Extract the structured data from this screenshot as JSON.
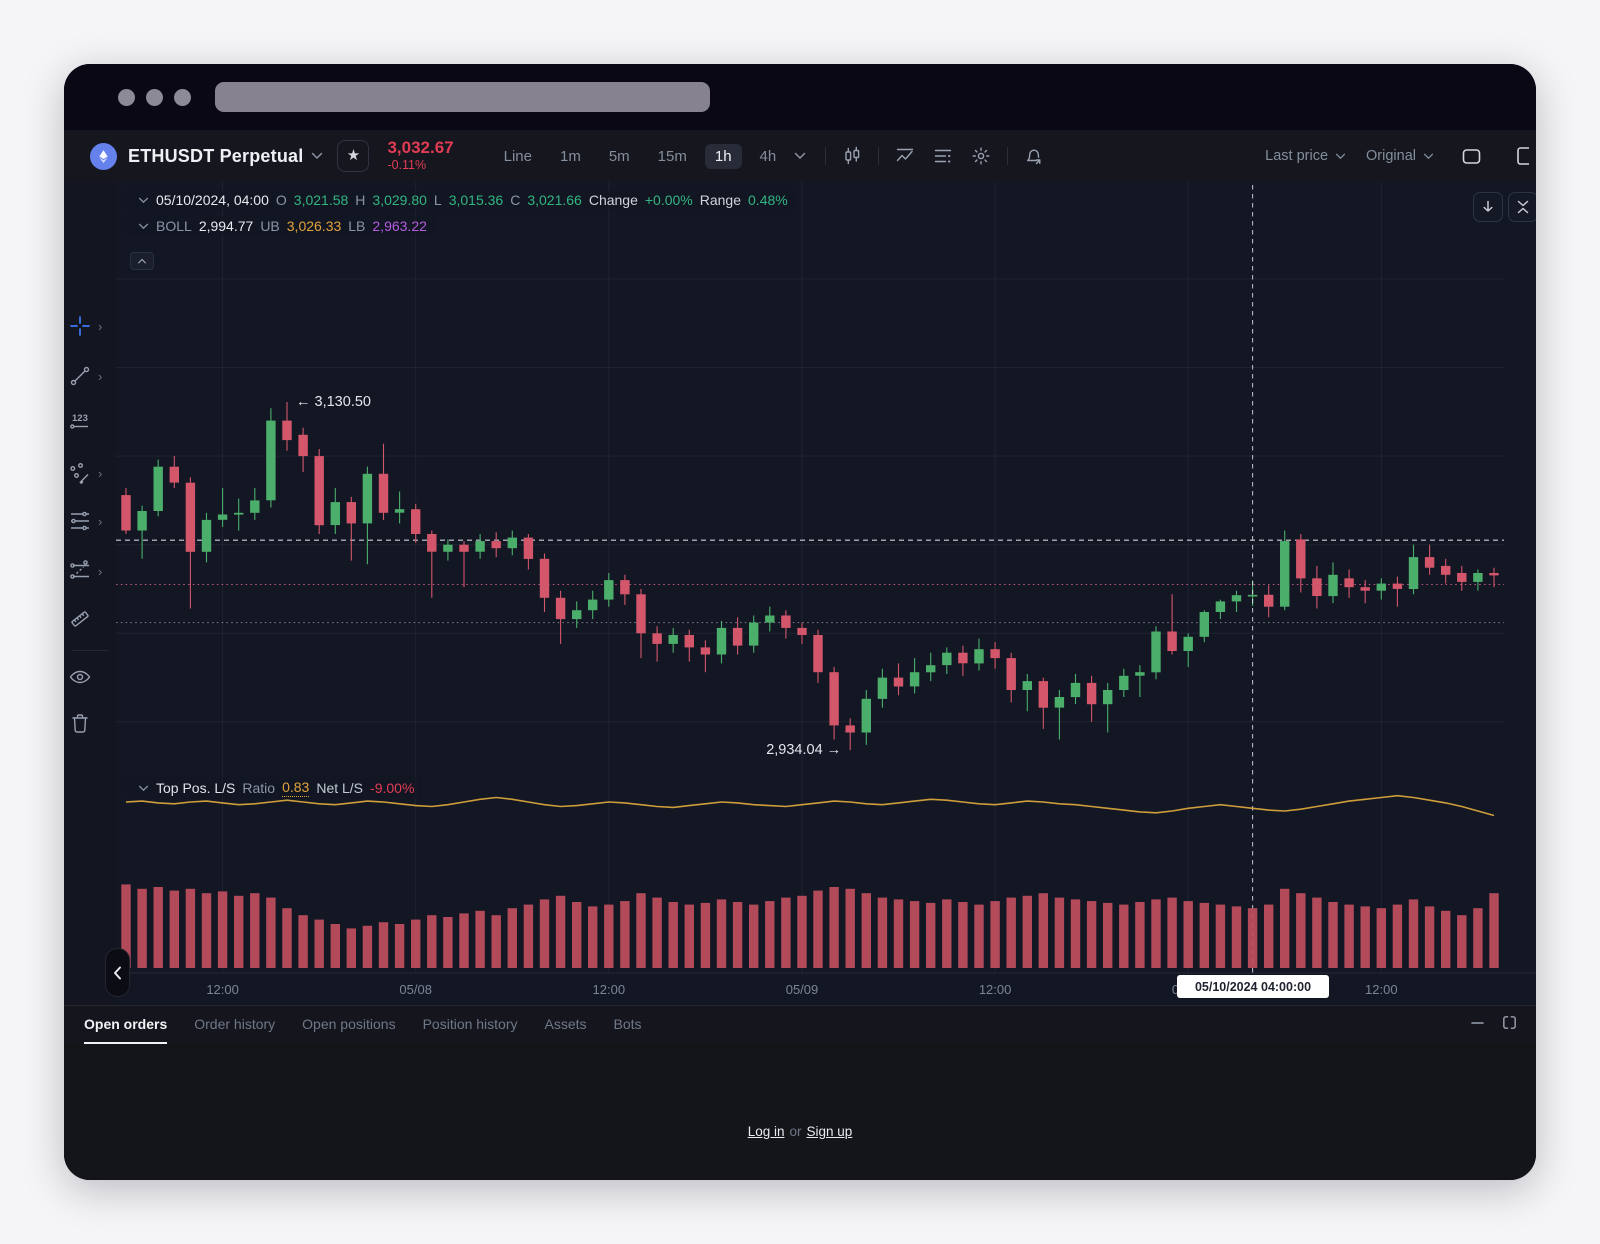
{
  "topbar": {
    "symbol": "ETHUSDT Perpetual",
    "price": "3,032.67",
    "change_pct": "-0.11%",
    "timeframes": [
      "Line",
      "1m",
      "5m",
      "15m",
      "1h",
      "4h"
    ],
    "active_timeframe": "1h",
    "price_mode": "Last price",
    "scale_mode": "Original"
  },
  "indicator_rows": {
    "ohlc": {
      "date": "05/10/2024, 04:00",
      "items": [
        {
          "label": "O",
          "value": "3,021.58"
        },
        {
          "label": "H",
          "value": "3,029.80"
        },
        {
          "label": "L",
          "value": "3,015.36"
        },
        {
          "label": "C",
          "value": "3,021.66"
        },
        {
          "label": "Change",
          "value": "+0.00%"
        },
        {
          "label": "Range",
          "value": "0.48%"
        }
      ]
    },
    "boll": {
      "name": "BOLL",
      "value": "2,994.77",
      "items": [
        {
          "label": "UB",
          "value": "3,026.33",
          "color": "#e2a33d"
        },
        {
          "label": "LB",
          "value": "2,963.22",
          "color": "#b45be0"
        }
      ]
    },
    "ls": {
      "name": "Top Pos. L/S",
      "ratio_label": "Ratio",
      "ratio": "0.83",
      "net_label": "Net L/S",
      "net": "-9.00%"
    }
  },
  "axis_tooltip": "05/10/2024  04:00:00",
  "bottom_tabs": [
    "Open orders",
    "Order history",
    "Open positions",
    "Position history",
    "Assets",
    "Bots"
  ],
  "active_tab": "Open orders",
  "footer": {
    "login": "Log in",
    "or": "or",
    "signup": "Sign up"
  },
  "toolbar_tools": [
    "crosshair",
    "trend-line",
    "price-label",
    "pattern",
    "horizontal-lines",
    "position-tool",
    "ruler",
    "divider",
    "eye",
    "trash"
  ],
  "toolbar_chevrons": [
    "crosshair",
    "trend-line",
    "pattern",
    "horizontal-lines",
    "position-tool"
  ],
  "chart_icons": [
    "candles",
    "indicator",
    "layout-list",
    "settings-gear",
    "alert-bell"
  ],
  "colors": {
    "up": "#4bae6a",
    "down": "#d4566b",
    "volume": "#c14f60",
    "ratio_line": "#d9a43c",
    "accent_red": "#e23c55",
    "accent_green": "#32b581",
    "boll_ub": "#e2a33d",
    "boll_lb": "#b45be0"
  },
  "chart_data": {
    "type": "candlestick",
    "symbol": "ETHUSDT Perpetual",
    "timeframe": "1h",
    "title": "ETHUSDT Perpetual 1h",
    "price_top": 3253,
    "price_bottom": 2920,
    "h_grid_prices": [
      2950,
      3000,
      3050,
      3100,
      3150,
      3200
    ],
    "x_ticks": [
      {
        "i": 6,
        "label": "12:00"
      },
      {
        "i": 18,
        "label": "05/08"
      },
      {
        "i": 30,
        "label": "12:00"
      },
      {
        "i": 42,
        "label": "05/09"
      },
      {
        "i": 54,
        "label": "12:00"
      },
      {
        "i": 66,
        "label": "05/10"
      },
      {
        "i": 78,
        "label": "12:00"
      }
    ],
    "crosshair_index": 70,
    "price_lines": [
      {
        "price": 3052.5,
        "style": "dashed",
        "color": "rgba(238,241,248,0.85)"
      },
      {
        "price": 3027.5,
        "style": "dotted",
        "color": "rgba(214,96,140,0.85)"
      },
      {
        "price": 3006.0,
        "style": "dotted",
        "color": "rgba(200,205,215,0.5)"
      }
    ],
    "annotations": [
      {
        "index": 10,
        "text": "← 3,130.50",
        "price": 3130.5,
        "anchor": "left"
      },
      {
        "index": 45,
        "text": "2,934.04 →",
        "price": 2934.04,
        "anchor": "right"
      }
    ],
    "candles": [
      [
        3078,
        3082,
        3056,
        3058
      ],
      [
        3058,
        3072,
        3042,
        3069
      ],
      [
        3069,
        3098,
        3066,
        3094
      ],
      [
        3094,
        3100,
        3082,
        3085
      ],
      [
        3085,
        3088,
        3014,
        3046
      ],
      [
        3046,
        3068,
        3040,
        3064
      ],
      [
        3064,
        3082,
        3060,
        3067
      ],
      [
        3067,
        3076,
        3058,
        3068
      ],
      [
        3068,
        3082,
        3064,
        3075
      ],
      [
        3075,
        3127,
        3071,
        3120
      ],
      [
        3120,
        3130.5,
        3103,
        3109
      ],
      [
        3112,
        3116,
        3091,
        3100
      ],
      [
        3100,
        3104,
        3056,
        3061
      ],
      [
        3061,
        3082,
        3056,
        3074
      ],
      [
        3074,
        3077,
        3041,
        3062
      ],
      [
        3062,
        3094,
        3039,
        3090
      ],
      [
        3090,
        3107,
        3064,
        3068
      ],
      [
        3068,
        3080,
        3062,
        3070
      ],
      [
        3070,
        3073,
        3051,
        3056
      ],
      [
        3056,
        3058,
        3020,
        3046
      ],
      [
        3046,
        3053,
        3041,
        3050
      ],
      [
        3050,
        3052,
        3026,
        3046
      ],
      [
        3046,
        3056,
        3042,
        3052
      ],
      [
        3052,
        3057,
        3043,
        3048
      ],
      [
        3048,
        3058,
        3044,
        3054
      ],
      [
        3054,
        3056,
        3036,
        3042
      ],
      [
        3042,
        3045,
        3012,
        3020
      ],
      [
        3020,
        3024,
        2994,
        3008
      ],
      [
        3008,
        3018,
        3003,
        3013
      ],
      [
        3013,
        3024,
        3008,
        3019
      ],
      [
        3019,
        3034,
        3015,
        3030
      ],
      [
        3030,
        3033,
        3016,
        3022
      ],
      [
        3022,
        3025,
        2986,
        3000
      ],
      [
        3000,
        3004,
        2984,
        2994
      ],
      [
        2994,
        3003,
        2989,
        2999
      ],
      [
        2999,
        3002,
        2984,
        2992
      ],
      [
        2992,
        2996,
        2978,
        2988
      ],
      [
        2988,
        3007,
        2983,
        3003
      ],
      [
        3003,
        3009,
        2988,
        2993
      ],
      [
        2993,
        3010,
        2989,
        3006
      ],
      [
        3006,
        3015,
        3001,
        3010
      ],
      [
        3010,
        3013,
        2997,
        3003
      ],
      [
        3003,
        3006,
        2994,
        2999
      ],
      [
        2999,
        3002,
        2972,
        2978
      ],
      [
        2978,
        2981,
        2940,
        2948
      ],
      [
        2948,
        2952,
        2934.04,
        2944
      ],
      [
        2944,
        2968,
        2937,
        2963
      ],
      [
        2963,
        2980,
        2958,
        2975
      ],
      [
        2975,
        2983,
        2965,
        2970
      ],
      [
        2970,
        2986,
        2966,
        2978
      ],
      [
        2978,
        2989,
        2973,
        2982
      ],
      [
        2982,
        2992,
        2977,
        2989
      ],
      [
        2989,
        2993,
        2976,
        2983
      ],
      [
        2983,
        2997,
        2979,
        2991
      ],
      [
        2991,
        2995,
        2980,
        2986
      ],
      [
        2986,
        2989,
        2961,
        2968
      ],
      [
        2968,
        2977,
        2956,
        2973
      ],
      [
        2973,
        2975,
        2946,
        2958
      ],
      [
        2958,
        2968,
        2940,
        2964
      ],
      [
        2964,
        2977,
        2960,
        2972
      ],
      [
        2972,
        2976,
        2950,
        2960
      ],
      [
        2960,
        2972,
        2944,
        2968
      ],
      [
        2968,
        2980,
        2964,
        2976
      ],
      [
        2976,
        2982,
        2964,
        2978
      ],
      [
        2978,
        3004,
        2974,
        3001
      ],
      [
        3001,
        3022,
        2988,
        2990
      ],
      [
        2990,
        3000,
        2981,
        2998
      ],
      [
        2998,
        3013,
        2995,
        3012
      ],
      [
        3012,
        3019,
        3008,
        3018
      ],
      [
        3018,
        3024,
        3012,
        3021.5
      ],
      [
        3021.58,
        3029.8,
        3015.36,
        3021.66
      ],
      [
        3021.7,
        3027,
        3009,
        3015
      ],
      [
        3015,
        3058,
        3013,
        3052
      ],
      [
        3053,
        3056,
        3023,
        3031
      ],
      [
        3031,
        3038,
        3014,
        3021
      ],
      [
        3021,
        3040,
        3017,
        3033
      ],
      [
        3031,
        3036,
        3020,
        3026
      ],
      [
        3026,
        3030,
        3017,
        3024
      ],
      [
        3024,
        3031,
        3019,
        3028
      ],
      [
        3028,
        3032,
        3015,
        3025
      ],
      [
        3025,
        3050,
        3022,
        3043
      ],
      [
        3043,
        3050,
        3033,
        3037
      ],
      [
        3038,
        3042,
        3028,
        3033
      ],
      [
        3034,
        3038,
        3024,
        3029
      ],
      [
        3029,
        3036,
        3024,
        3034
      ],
      [
        3034,
        3037,
        3026,
        3032.67
      ]
    ],
    "volumes": [
      0.95,
      0.9,
      0.92,
      0.88,
      0.9,
      0.85,
      0.87,
      0.82,
      0.85,
      0.8,
      0.68,
      0.6,
      0.55,
      0.5,
      0.45,
      0.48,
      0.52,
      0.5,
      0.55,
      0.6,
      0.58,
      0.62,
      0.65,
      0.6,
      0.68,
      0.72,
      0.78,
      0.82,
      0.75,
      0.7,
      0.72,
      0.76,
      0.85,
      0.8,
      0.75,
      0.72,
      0.74,
      0.78,
      0.75,
      0.72,
      0.76,
      0.8,
      0.82,
      0.88,
      0.92,
      0.9,
      0.85,
      0.8,
      0.78,
      0.76,
      0.74,
      0.78,
      0.75,
      0.72,
      0.76,
      0.8,
      0.82,
      0.85,
      0.8,
      0.78,
      0.76,
      0.74,
      0.72,
      0.75,
      0.78,
      0.8,
      0.76,
      0.74,
      0.72,
      0.7,
      0.68,
      0.72,
      0.9,
      0.85,
      0.8,
      0.75,
      0.72,
      0.7,
      0.68,
      0.72,
      0.78,
      0.7,
      0.65,
      0.6,
      0.68,
      0.85
    ],
    "ratio_series": [
      0.845,
      0.846,
      0.844,
      0.843,
      0.845,
      0.846,
      0.844,
      0.842,
      0.843,
      0.845,
      0.847,
      0.845,
      0.843,
      0.842,
      0.844,
      0.846,
      0.845,
      0.843,
      0.841,
      0.84,
      0.842,
      0.845,
      0.848,
      0.85,
      0.848,
      0.845,
      0.842,
      0.84,
      0.841,
      0.843,
      0.845,
      0.844,
      0.842,
      0.84,
      0.839,
      0.841,
      0.843,
      0.845,
      0.844,
      0.842,
      0.841,
      0.84,
      0.842,
      0.844,
      0.846,
      0.845,
      0.843,
      0.842,
      0.844,
      0.846,
      0.848,
      0.847,
      0.845,
      0.843,
      0.842,
      0.844,
      0.846,
      0.845,
      0.843,
      0.842,
      0.84,
      0.838,
      0.836,
      0.834,
      0.833,
      0.835,
      0.838,
      0.84,
      0.842,
      0.84,
      0.838,
      0.836,
      0.835,
      0.837,
      0.84,
      0.843,
      0.846,
      0.848,
      0.85,
      0.852,
      0.85,
      0.847,
      0.844,
      0.84,
      0.835,
      0.83
    ]
  }
}
